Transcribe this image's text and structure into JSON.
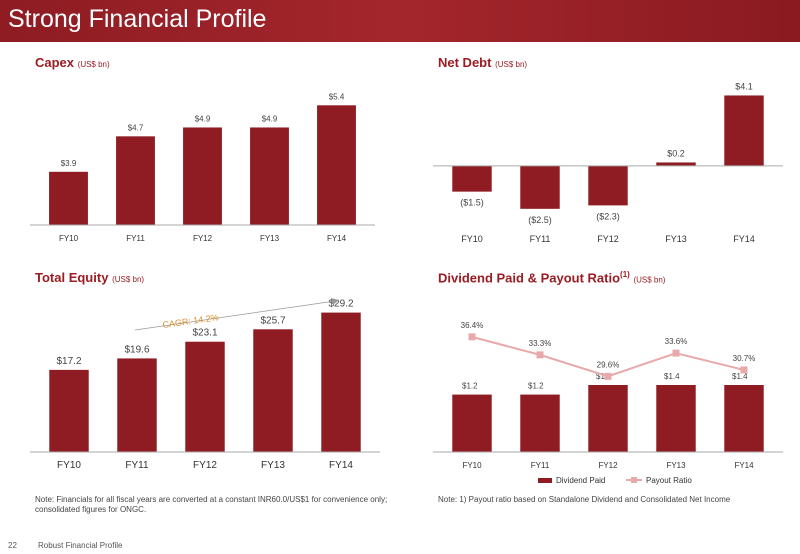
{
  "slide": {
    "title": "Strong Financial Profile",
    "page_number": "22",
    "footer": "Robust Financial Profile",
    "note_left": "Note: Financials for all fiscal years are converted at a constant INR60.0/US$1 for convenience only; consolidated figures for ONGC.",
    "note_right": "Note: 1) Payout ratio based on Standalone Dividend and Consolidated Net Income"
  },
  "colors": {
    "bar": "#8e1c22",
    "line": "#e8a9aa",
    "header": "#9b1c23"
  },
  "chart_data": [
    {
      "type": "bar",
      "title": "Capex",
      "unit": "(US$ bn)",
      "categories": [
        "FY10",
        "FY11",
        "FY12",
        "FY13",
        "FY14"
      ],
      "values": [
        3.9,
        4.7,
        4.9,
        4.9,
        5.4
      ],
      "labels": [
        "$3.9",
        "$4.7",
        "$4.9",
        "$4.9",
        "$5.4"
      ],
      "ylim": [
        2.7,
        5.7
      ]
    },
    {
      "type": "bar",
      "title": "Net Debt",
      "unit": "(US$ bn)",
      "categories": [
        "FY10",
        "FY11",
        "FY12",
        "FY13",
        "FY14"
      ],
      "values": [
        -1.5,
        -2.5,
        -2.3,
        0.2,
        4.1
      ],
      "labels": [
        "($1.5)",
        "($2.5)",
        "($2.3)",
        "$0.2",
        "$4.1"
      ],
      "ylim": [
        -3.5,
        5.0
      ]
    },
    {
      "type": "bar",
      "title": "Total Equity",
      "unit": "(US$ bn)",
      "categories": [
        "FY10",
        "FY11",
        "FY12",
        "FY13",
        "FY14"
      ],
      "values": [
        17.2,
        19.6,
        23.1,
        25.7,
        29.2
      ],
      "labels": [
        "$17.2",
        "$19.6",
        "$23.1",
        "$25.7",
        "$29.2"
      ],
      "ylim": [
        0,
        31
      ],
      "annotation": "CAGR: 14.2%"
    },
    {
      "type": "bar",
      "title": "Dividend Paid & Payout Ratio",
      "title_sup": "(1)",
      "unit": "(US$ bn)",
      "categories": [
        "FY10",
        "FY11",
        "FY12",
        "FY13",
        "FY14"
      ],
      "series": [
        {
          "name": "Dividend Paid",
          "type": "bar",
          "values": [
            1.2,
            1.2,
            1.4,
            1.4,
            1.4
          ],
          "labels": [
            "$1.2",
            "$1.2",
            "$1.4",
            "$1.4",
            "$1.4"
          ]
        },
        {
          "name": "Payout Ratio",
          "type": "line",
          "values": [
            36.4,
            33.3,
            29.6,
            33.6,
            30.7
          ],
          "labels": [
            "36.4%",
            "33.3%",
            "29.6%",
            "33.6%",
            "30.7%"
          ]
        }
      ],
      "legend": "bottom"
    }
  ]
}
